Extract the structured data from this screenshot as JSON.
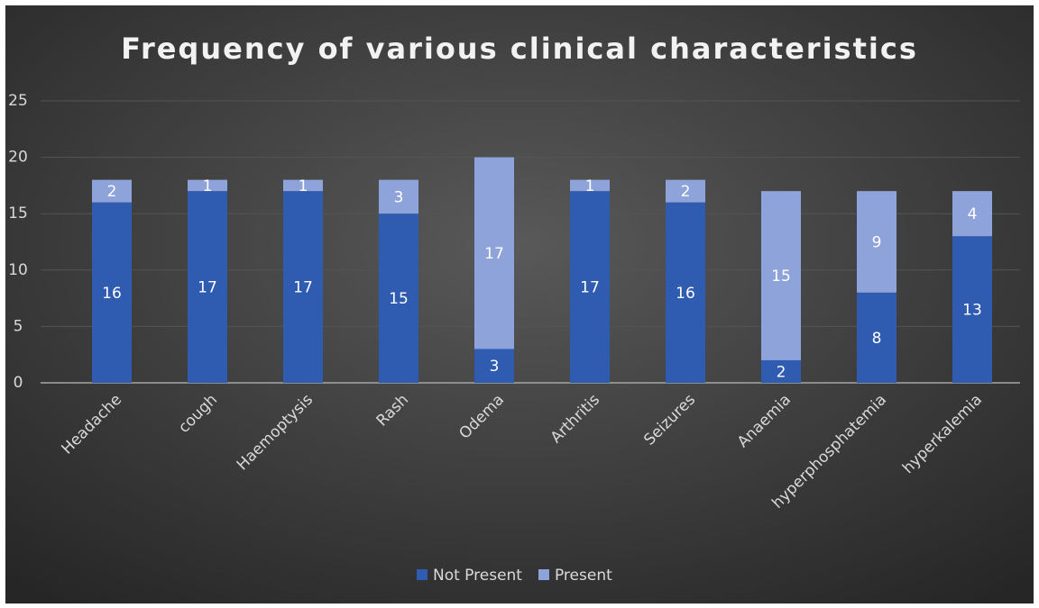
{
  "chart_data": {
    "type": "stacked_bar",
    "title": "Frequency of various clinical characteristics",
    "categories": [
      "Headache",
      "cough",
      "Haemoptysis",
      "Rash",
      "Odema",
      "Arthritis",
      "Seizures",
      "Anaemia",
      "hyperphosphatemia",
      "hyperkalemia"
    ],
    "series": [
      {
        "name": "Not Present",
        "color": "#2f5bb0",
        "values": [
          16,
          17,
          17,
          15,
          3,
          17,
          16,
          2,
          8,
          13
        ]
      },
      {
        "name": "Present",
        "color": "#8ea3da",
        "values": [
          2,
          1,
          1,
          3,
          17,
          1,
          2,
          15,
          9,
          4
        ]
      }
    ],
    "ylim": [
      0,
      25
    ],
    "yticks": [
      0,
      5,
      10,
      15,
      20,
      25
    ],
    "grid": true,
    "legend": "bottom"
  }
}
